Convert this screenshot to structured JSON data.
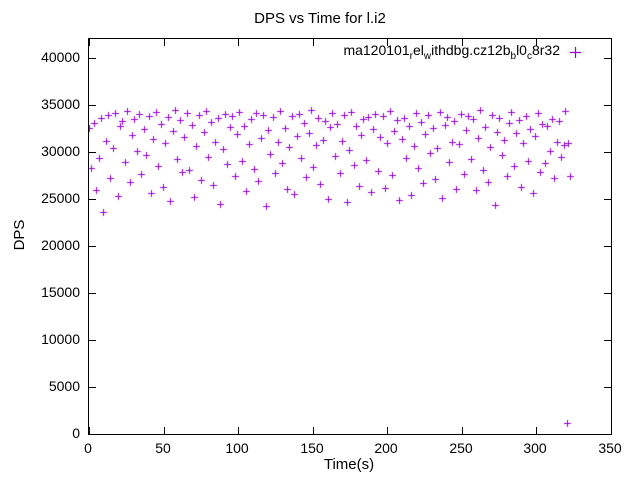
{
  "title": "DPS vs Time for l.i2",
  "legend": {
    "marker_color": "#9400d3",
    "series_name_raw": "ma120101_rel_withdbg.cz12b_bl0_c8r32",
    "segments": [
      {
        "text": "ma120101"
      },
      {
        "text": "r",
        "sub": true
      },
      {
        "text": "el"
      },
      {
        "text": "w",
        "sub": true
      },
      {
        "text": "ithdbg.cz12b"
      },
      {
        "text": "b",
        "sub": true
      },
      {
        "text": "l0"
      },
      {
        "text": "c",
        "sub": true
      },
      {
        "text": "8r32"
      }
    ]
  },
  "axes": {
    "x": {
      "label": "Time(s)",
      "ticks": [
        0,
        50,
        100,
        150,
        200,
        250,
        300,
        350
      ]
    },
    "y": {
      "label": "DPS",
      "ticks": [
        0,
        5000,
        10000,
        15000,
        20000,
        25000,
        30000,
        35000,
        40000
      ]
    }
  },
  "chart_data": {
    "type": "scatter",
    "title": "DPS vs Time for l.i2",
    "xlabel": "Time(s)",
    "ylabel": "DPS",
    "xlim": [
      0,
      350
    ],
    "ylim": [
      0,
      42000
    ],
    "grid": false,
    "legend_position": "top-right-inside",
    "series": [
      {
        "name": "ma120101_rel_withdbg.cz12b_bl0_c8r32",
        "color": "#9400d3",
        "marker": "plus",
        "x0": 0,
        "dx": 1.6,
        "y": [
          32500,
          28300,
          33100,
          25900,
          29400,
          33600,
          23600,
          31200,
          33900,
          27200,
          30400,
          34100,
          25300,
          32800,
          33300,
          28900,
          34300,
          26800,
          31800,
          33500,
          30100,
          34000,
          27600,
          32400,
          29700,
          33800,
          25600,
          31400,
          34200,
          28500,
          33000,
          26300,
          30900,
          33700,
          24800,
          32200,
          34400,
          29200,
          33400,
          27900,
          31600,
          34100,
          28100,
          32900,
          25200,
          30600,
          33900,
          27000,
          32100,
          34300,
          29500,
          33200,
          26500,
          31100,
          33600,
          24500,
          30300,
          34000,
          28700,
          32600,
          33800,
          27400,
          31900,
          34200,
          29000,
          32700,
          25800,
          30800,
          33500,
          28200,
          34100,
          26900,
          31500,
          33900,
          24200,
          32300,
          29800,
          33700,
          27700,
          31000,
          34300,
          28800,
          32500,
          26100,
          30500,
          33800,
          25500,
          31700,
          34000,
          29300,
          33100,
          27300,
          32000,
          34400,
          28400,
          30700,
          33600,
          26600,
          31300,
          33300,
          25000,
          32600,
          34100,
          29600,
          33000,
          27800,
          31200,
          33900,
          24700,
          30200,
          34200,
          28600,
          32800,
          26400,
          31800,
          33500,
          29100,
          33700,
          25700,
          32400,
          34000,
          28000,
          31600,
          33800,
          26200,
          30900,
          34300,
          27500,
          32200,
          33400,
          24900,
          31400,
          33600,
          29400,
          32700,
          25400,
          30600,
          34100,
          28300,
          33200,
          26700,
          31900,
          33900,
          29900,
          32500,
          27100,
          30400,
          34200,
          25100,
          32900,
          33700,
          28900,
          31100,
          33300,
          26000,
          30800,
          34000,
          27600,
          32300,
          33800,
          29200,
          33500,
          25900,
          31500,
          34400,
          28100,
          32600,
          26800,
          30500,
          33900,
          24400,
          32100,
          33600,
          29700,
          31300,
          27400,
          33100,
          34200,
          28500,
          32000,
          33400,
          26300,
          30900,
          33800,
          29000,
          32400,
          25600,
          31700,
          34100,
          27900,
          33000,
          28800,
          32700,
          30100,
          33500,
          27200,
          31000,
          33300,
          29500,
          30700
        ],
        "extra_points": [
          [
            318.9,
            34300
          ],
          [
            320.3,
            1200
          ],
          [
            321.5,
            30900
          ],
          [
            322.6,
            27400
          ]
        ]
      }
    ]
  }
}
